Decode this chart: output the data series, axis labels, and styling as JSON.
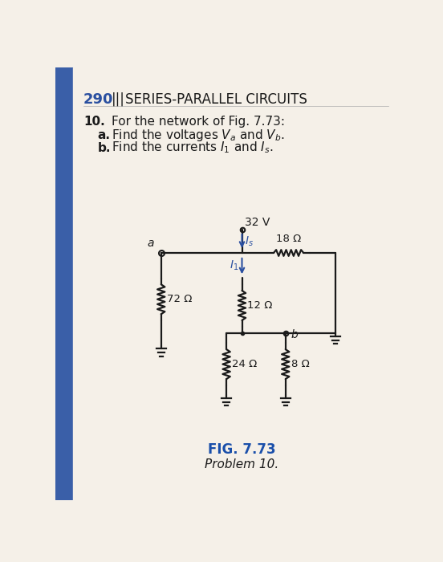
{
  "page_number": "290",
  "page_header": "SERIES-PARALLEL CIRCUITS",
  "header_bars": "|||",
  "problem_number": "10.",
  "problem_text": "For the network of Fig. 7.73:",
  "part_a_bold": "a.",
  "part_a_text": "Find the voltages ",
  "part_a_Va": "V",
  "part_a_Va_sub": "a",
  "part_a_mid": " and ",
  "part_a_Vb": "V",
  "part_a_Vb_sub": "b",
  "part_a_end": ".",
  "part_b_bold": "b.",
  "part_b_text": "Find the currents ",
  "part_b_I1": "I",
  "part_b_I1_sub": "1",
  "part_b_mid": " and ",
  "part_b_Is": "I",
  "part_b_Is_sub": "s",
  "part_b_end": ".",
  "fig_label": "FIG. 7.73",
  "fig_caption": "Problem 10.",
  "voltage_label": "32 V",
  "R1_label": "18 Ω",
  "R2_label": "72 Ω",
  "R3_label": "12 Ω",
  "R4_label": "24 Ω",
  "R5_label": "8 Ω",
  "node_a_label": "a",
  "node_b_label": "b",
  "Is_label": "I",
  "Is_sub": "s",
  "I1_label": "I",
  "I1_sub": "1",
  "bg_color": "#e8e2d0",
  "page_bg": "#f5f0e8",
  "blue_sidebar": "#3a5fa8",
  "text_color": "#1a1a1a",
  "blue_color": "#2a4fa0",
  "wire_color": "#1a1a1a",
  "header_num_color": "#2a4fa0",
  "fig_label_color": "#1a4faa"
}
